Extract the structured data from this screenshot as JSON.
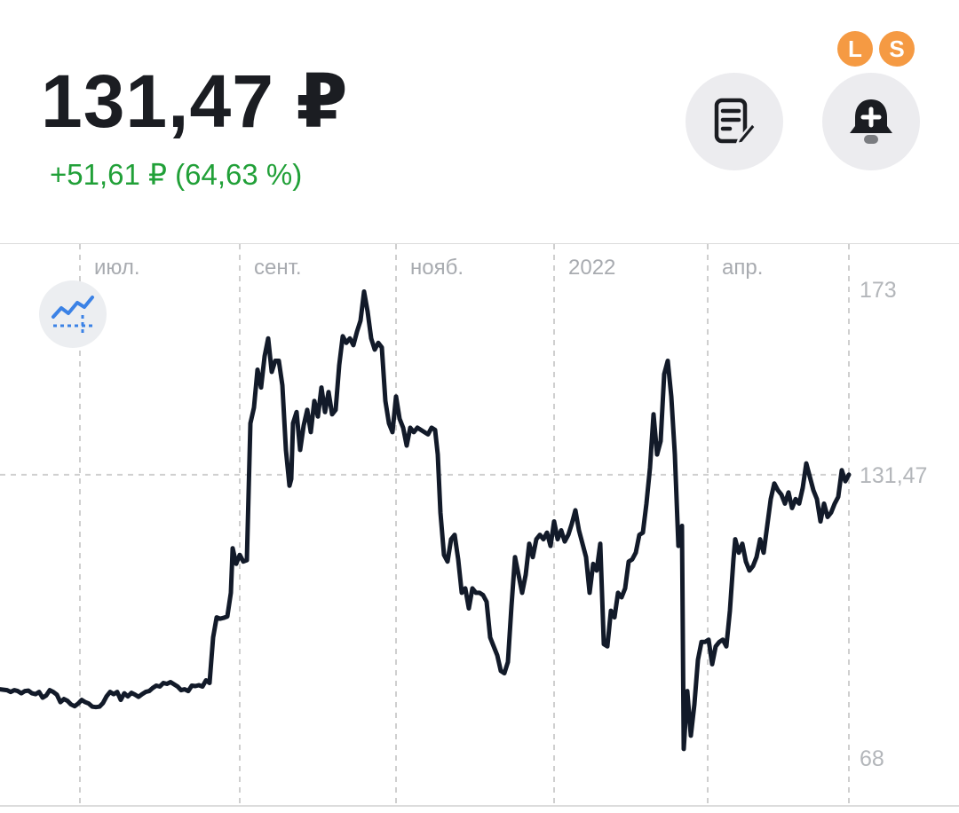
{
  "header": {
    "price": "131,47 ₽",
    "change": "+51,61 ₽ (64,63 %)"
  },
  "badges": {
    "left": "L",
    "right": "S"
  },
  "icons": {
    "note": "note-edit-icon",
    "bell": "bell-add-icon",
    "indicator": "indicator-chart-icon"
  },
  "colors": {
    "line": "#121a29",
    "positive": "#21a038",
    "badge": "#f59a43",
    "grid": "#cfcfcf",
    "button_bg": "#ececef"
  },
  "chart_data": {
    "type": "line",
    "x_tick_labels": [
      "июл.",
      "сент.",
      "нояб.",
      "2022",
      "апр."
    ],
    "y_tick_labels": [
      "173",
      "131,47",
      "68"
    ],
    "ylim": [
      68,
      173
    ],
    "current_value": 131.47,
    "grid": true,
    "series": [
      {
        "points": [
          [
            0,
            83.4
          ],
          [
            4,
            83.3
          ],
          [
            8,
            83.2
          ],
          [
            12,
            82.8
          ],
          [
            16,
            83.2
          ],
          [
            20,
            83.0
          ],
          [
            24,
            82.5
          ],
          [
            28,
            83.0
          ],
          [
            32,
            83.1
          ],
          [
            36,
            82.5
          ],
          [
            40,
            82.3
          ],
          [
            44,
            82.8
          ],
          [
            48,
            81.5
          ],
          [
            52,
            82.0
          ],
          [
            56,
            83.2
          ],
          [
            60,
            82.8
          ],
          [
            64,
            82.2
          ],
          [
            68,
            80.5
          ],
          [
            72,
            81.2
          ],
          [
            76,
            80.8
          ],
          [
            80,
            80.0
          ],
          [
            84,
            79.6
          ],
          [
            88,
            80.2
          ],
          [
            92,
            81.0
          ],
          [
            96,
            80.5
          ],
          [
            100,
            80.2
          ],
          [
            104,
            79.5
          ],
          [
            108,
            79.4
          ],
          [
            112,
            79.5
          ],
          [
            116,
            80.3
          ],
          [
            120,
            81.8
          ],
          [
            124,
            82.8
          ],
          [
            128,
            82.3
          ],
          [
            132,
            82.8
          ],
          [
            136,
            81.0
          ],
          [
            140,
            82.5
          ],
          [
            144,
            81.8
          ],
          [
            148,
            82.6
          ],
          [
            152,
            82.2
          ],
          [
            156,
            81.7
          ],
          [
            160,
            82.3
          ],
          [
            164,
            82.8
          ],
          [
            168,
            83.0
          ],
          [
            172,
            83.7
          ],
          [
            176,
            84.2
          ],
          [
            180,
            84.0
          ],
          [
            184,
            84.8
          ],
          [
            188,
            84.6
          ],
          [
            192,
            85.0
          ],
          [
            196,
            84.5
          ],
          [
            200,
            84.0
          ],
          [
            204,
            83.2
          ],
          [
            208,
            83.4
          ],
          [
            212,
            83.0
          ],
          [
            216,
            84.2
          ],
          [
            220,
            84.1
          ],
          [
            224,
            84.3
          ],
          [
            228,
            84.0
          ],
          [
            232,
            85.4
          ],
          [
            236,
            84.8
          ],
          [
            240,
            95.0
          ],
          [
            244,
            99.5
          ],
          [
            248,
            99.2
          ],
          [
            252,
            99.4
          ],
          [
            256,
            99.7
          ],
          [
            260,
            105.0
          ],
          [
            262,
            115.0
          ],
          [
            266,
            111.5
          ],
          [
            270,
            113.5
          ],
          [
            274,
            112.0
          ],
          [
            278,
            112.3
          ],
          [
            282,
            143.0
          ],
          [
            286,
            146.5
          ],
          [
            290,
            155.0
          ],
          [
            294,
            151.0
          ],
          [
            298,
            158.0
          ],
          [
            302,
            162.0
          ],
          [
            306,
            154.5
          ],
          [
            310,
            157.0
          ],
          [
            314,
            157.0
          ],
          [
            318,
            151.5
          ],
          [
            322,
            137.0
          ],
          [
            326,
            129.0
          ],
          [
            328,
            130.5
          ],
          [
            330,
            143.0
          ],
          [
            334,
            145.5
          ],
          [
            338,
            137.0
          ],
          [
            342,
            142.5
          ],
          [
            346,
            146.0
          ],
          [
            350,
            141.0
          ],
          [
            354,
            148.0
          ],
          [
            358,
            144.5
          ],
          [
            362,
            151.0
          ],
          [
            366,
            145.5
          ],
          [
            370,
            150.0
          ],
          [
            374,
            145.0
          ],
          [
            378,
            146.0
          ],
          [
            382,
            156.0
          ],
          [
            386,
            162.5
          ],
          [
            390,
            161.0
          ],
          [
            394,
            162.0
          ],
          [
            398,
            160.5
          ],
          [
            402,
            163.5
          ],
          [
            406,
            166.0
          ],
          [
            410,
            172.5
          ],
          [
            414,
            168.0
          ],
          [
            418,
            162.0
          ],
          [
            422,
            159.5
          ],
          [
            426,
            161.0
          ],
          [
            430,
            160.0
          ],
          [
            434,
            148.0
          ],
          [
            438,
            143.0
          ],
          [
            442,
            141.0
          ],
          [
            446,
            149.0
          ],
          [
            450,
            144.0
          ],
          [
            454,
            142.0
          ],
          [
            458,
            138.0
          ],
          [
            462,
            142.0
          ],
          [
            466,
            141.0
          ],
          [
            470,
            142.0
          ],
          [
            474,
            141.5
          ],
          [
            478,
            141.0
          ],
          [
            482,
            140.5
          ],
          [
            486,
            142.0
          ],
          [
            490,
            141.5
          ],
          [
            493,
            136.0
          ],
          [
            496,
            123.0
          ],
          [
            500,
            113.5
          ],
          [
            504,
            112.0
          ],
          [
            508,
            117.0
          ],
          [
            512,
            118.0
          ],
          [
            516,
            112.5
          ],
          [
            520,
            105.0
          ],
          [
            524,
            106.0
          ],
          [
            528,
            101.5
          ],
          [
            532,
            106.0
          ],
          [
            536,
            105.0
          ],
          [
            540,
            105.0
          ],
          [
            544,
            104.5
          ],
          [
            548,
            103.0
          ],
          [
            552,
            95.0
          ],
          [
            556,
            93.0
          ],
          [
            560,
            91.0
          ],
          [
            564,
            87.5
          ],
          [
            568,
            87.0
          ],
          [
            572,
            89.5
          ],
          [
            576,
            102.0
          ],
          [
            580,
            113.0
          ],
          [
            584,
            109.0
          ],
          [
            588,
            105.0
          ],
          [
            592,
            109.0
          ],
          [
            596,
            116.0
          ],
          [
            600,
            113.0
          ],
          [
            604,
            117.0
          ],
          [
            608,
            118.0
          ],
          [
            612,
            117.0
          ],
          [
            616,
            118.5
          ],
          [
            620,
            115.5
          ],
          [
            624,
            121.0
          ],
          [
            628,
            117.0
          ],
          [
            632,
            119.0
          ],
          [
            636,
            116.5
          ],
          [
            640,
            118.0
          ],
          [
            644,
            120.5
          ],
          [
            648,
            123.5
          ],
          [
            652,
            119.0
          ],
          [
            656,
            116.0
          ],
          [
            660,
            113.0
          ],
          [
            664,
            105.0
          ],
          [
            668,
            111.5
          ],
          [
            672,
            110.0
          ],
          [
            676,
            116.0
          ],
          [
            680,
            93.5
          ],
          [
            684,
            93.0
          ],
          [
            688,
            101.0
          ],
          [
            692,
            99.5
          ],
          [
            696,
            105.0
          ],
          [
            700,
            104.0
          ],
          [
            704,
            106.0
          ],
          [
            708,
            112.0
          ],
          [
            712,
            112.5
          ],
          [
            716,
            114.0
          ],
          [
            720,
            118.0
          ],
          [
            724,
            118.5
          ],
          [
            728,
            125.0
          ],
          [
            732,
            133.0
          ],
          [
            736,
            145.0
          ],
          [
            740,
            136.0
          ],
          [
            744,
            139.0
          ],
          [
            748,
            154.0
          ],
          [
            752,
            157.0
          ],
          [
            756,
            149.0
          ],
          [
            760,
            136.0
          ],
          [
            764,
            115.5
          ],
          [
            768,
            120.0
          ],
          [
            770,
            70.0
          ],
          [
            774,
            83.0
          ],
          [
            778,
            73.0
          ],
          [
            782,
            80.0
          ],
          [
            786,
            90.0
          ],
          [
            790,
            94.0
          ],
          [
            794,
            94.0
          ],
          [
            798,
            94.5
          ],
          [
            802,
            89.0
          ],
          [
            806,
            93.0
          ],
          [
            810,
            94.0
          ],
          [
            814,
            94.5
          ],
          [
            818,
            93.0
          ],
          [
            822,
            101.0
          ],
          [
            826,
            112.5
          ],
          [
            828,
            117.0
          ],
          [
            832,
            114.0
          ],
          [
            836,
            116.0
          ],
          [
            840,
            112.0
          ],
          [
            844,
            110.0
          ],
          [
            848,
            111.0
          ],
          [
            852,
            113.0
          ],
          [
            856,
            117.0
          ],
          [
            860,
            114.0
          ],
          [
            864,
            120.0
          ],
          [
            868,
            126.0
          ],
          [
            872,
            129.5
          ],
          [
            876,
            128.0
          ],
          [
            880,
            127.0
          ],
          [
            884,
            125.0
          ],
          [
            888,
            127.5
          ],
          [
            892,
            124.0
          ],
          [
            896,
            126.0
          ],
          [
            900,
            125.0
          ],
          [
            904,
            128.5
          ],
          [
            908,
            134.0
          ],
          [
            912,
            131.0
          ],
          [
            916,
            128.0
          ],
          [
            920,
            126.0
          ],
          [
            924,
            121.0
          ],
          [
            928,
            125.0
          ],
          [
            932,
            122.0
          ],
          [
            936,
            123.0
          ],
          [
            940,
            125.0
          ],
          [
            944,
            126.5
          ],
          [
            948,
            132.5
          ],
          [
            952,
            130.0
          ],
          [
            956,
            131.47
          ]
        ]
      }
    ]
  }
}
